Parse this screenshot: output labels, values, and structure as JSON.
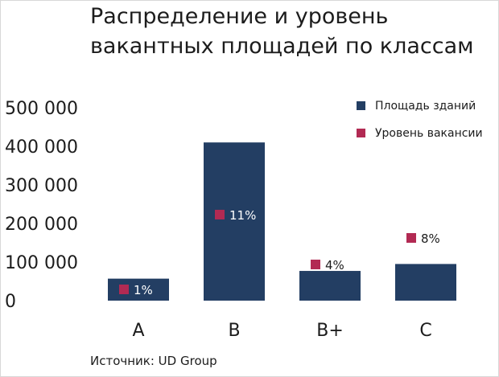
{
  "title_lines": [
    "Распределение и уровень",
    "вакантных площадей по классам"
  ],
  "source": "Источник: UD Group",
  "colors": {
    "bar": "#233e63",
    "marker": "#b22a53"
  },
  "chart_data": {
    "type": "bar",
    "title": "Распределение и уровень вакантных площадей по классам",
    "categories": [
      "A",
      "B",
      "B+",
      "C"
    ],
    "series": [
      {
        "name": "Площадь зданий",
        "values": [
          57000,
          410000,
          77000,
          95000
        ]
      },
      {
        "name": "Уровень вакансии",
        "values": [
          1,
          11,
          4,
          8
        ],
        "labels": [
          "1%",
          "11%",
          "4%",
          "8%"
        ]
      }
    ],
    "yticks": [
      "500 000",
      "400 000",
      "300 000",
      "200 000",
      "100 000",
      "0"
    ],
    "ylim": [
      0,
      500000
    ],
    "legend_position": "top-right",
    "grid": false
  }
}
